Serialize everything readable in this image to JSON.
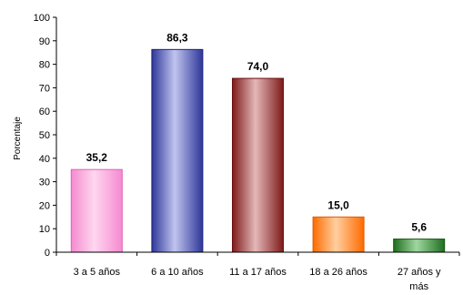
{
  "chart_data": {
    "type": "bar",
    "categories": [
      [
        "3 a 5 años"
      ],
      [
        "6 a 10 años"
      ],
      [
        "11 a 17 años"
      ],
      [
        "18 a 26 años"
      ],
      [
        "27 años y",
        "más"
      ]
    ],
    "values": [
      35.2,
      86.3,
      74.0,
      15.0,
      5.6
    ],
    "data_labels": [
      "35,2",
      "86,3",
      "74,0",
      "15,0",
      "5,6"
    ],
    "title": "",
    "xlabel": "",
    "ylabel": "Porcentaje",
    "ylim": [
      0,
      100
    ],
    "yticks": [
      0,
      10,
      20,
      30,
      40,
      50,
      60,
      70,
      80,
      90,
      100
    ],
    "grid": false,
    "legend": "none",
    "bar_colors": [
      {
        "light": "#ffd6ef",
        "dark": "#f58ad0",
        "edge": "#e060b8"
      },
      {
        "light": "#c0c4ee",
        "dark": "#2e3799",
        "edge": "#1b2278"
      },
      {
        "light": "#e4b8b8",
        "dark": "#7f1a1a",
        "edge": "#6a0f0f"
      },
      {
        "light": "#ffcfa0",
        "dark": "#ff6a00",
        "edge": "#e05a00"
      },
      {
        "light": "#9fd79f",
        "dark": "#1f6e1f",
        "edge": "#155515"
      }
    ]
  }
}
